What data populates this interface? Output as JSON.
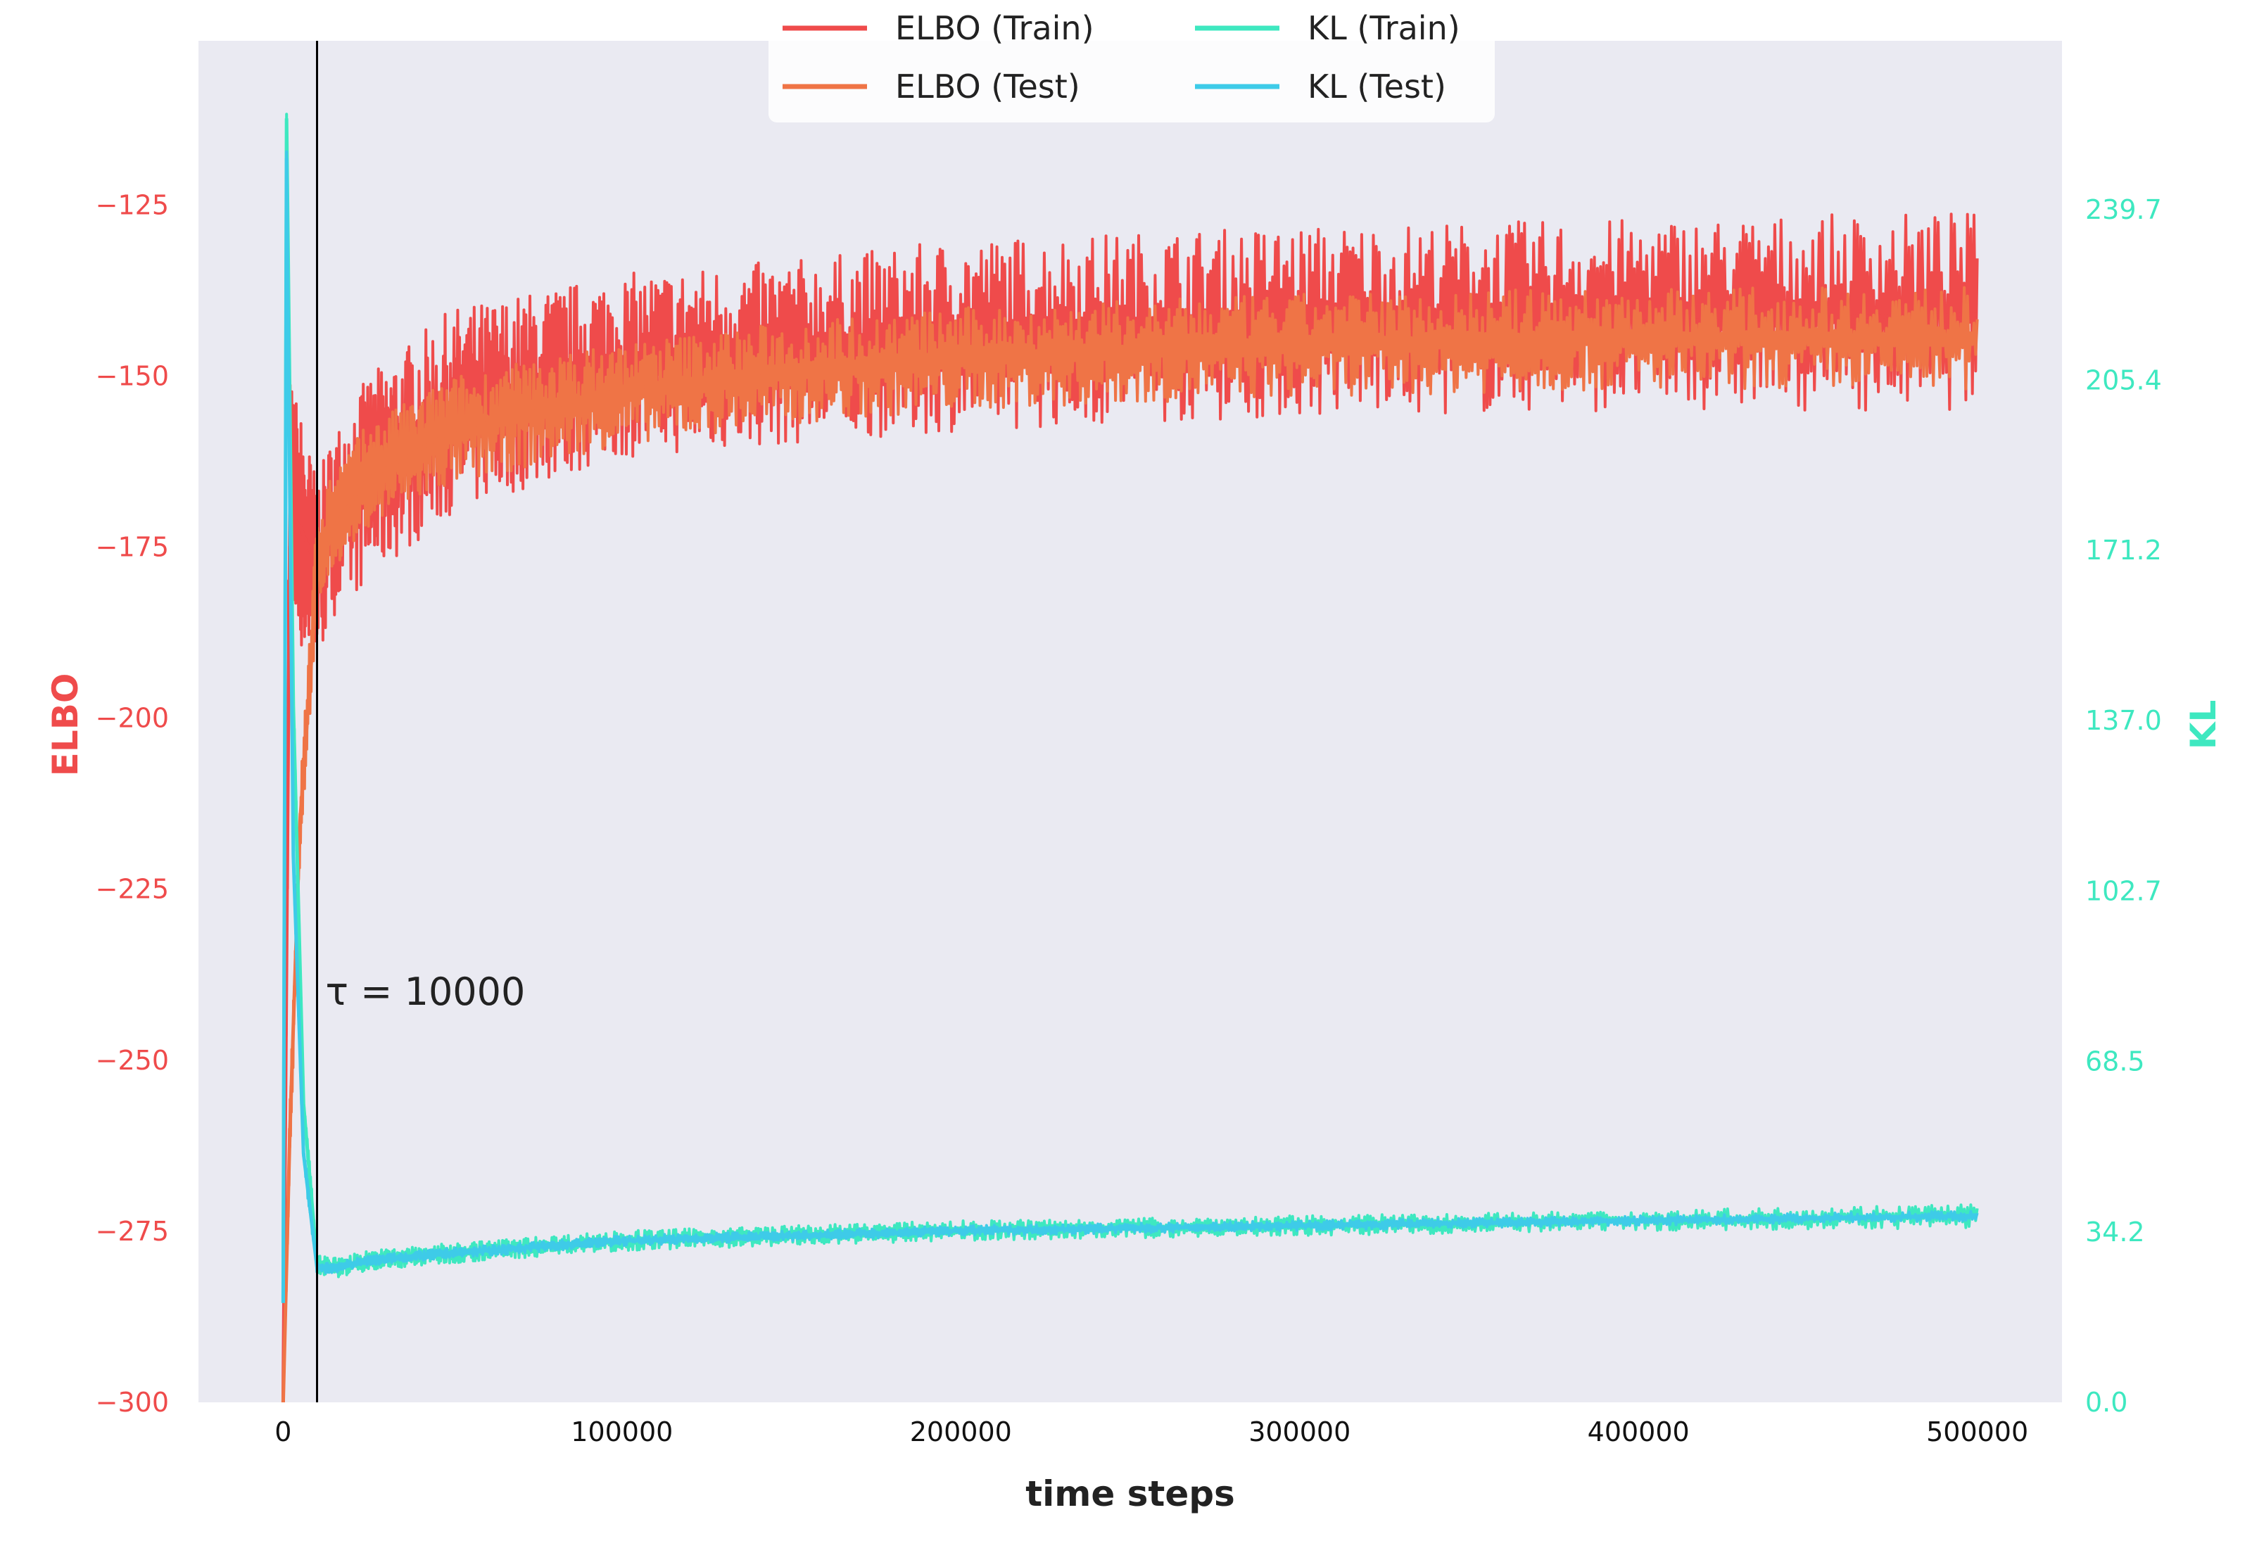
{
  "chart_data": {
    "type": "line",
    "xlabel": "time steps",
    "ylabel_left": "ELBO",
    "ylabel_right": "KL",
    "x_ticks": [
      "0",
      "100000",
      "200000",
      "300000",
      "400000",
      "500000"
    ],
    "y_left_ticks": [
      "−125",
      "−150",
      "−175",
      "−200",
      "−225",
      "−250",
      "−275",
      "−300"
    ],
    "y_right_ticks": [
      "239.7",
      "205.4",
      "171.2",
      "137.0",
      "102.7",
      "68.5",
      "34.2",
      "0.0"
    ],
    "xlim": [
      -25000,
      525000
    ],
    "ylim_left": [
      -300,
      -101
    ],
    "ylim_right": [
      0,
      273.6
    ],
    "grid": false,
    "legend_position": "top-center",
    "annotation": {
      "text": "τ = 10000",
      "x": 10000
    },
    "colors": {
      "elbo_train": "#ef4b4b",
      "elbo_test": "#ef7446",
      "kl_train": "#3ee8c0",
      "kl_test": "#3ecbe8",
      "left_axis": "#ef4b4b",
      "right_axis": "#3ee8c0",
      "plot_bg": "#eaeaf2"
    },
    "series": [
      {
        "name": "ELBO (Train)",
        "axis": "left",
        "x": [
          0,
          2000,
          5000,
          10000,
          15000,
          25000,
          50000,
          100000,
          150000,
          200000,
          300000,
          400000,
          500000
        ],
        "y_mid": [
          -300,
          -170,
          -172,
          -178,
          -173,
          -168,
          -160,
          -152,
          -148,
          -146,
          -144,
          -142,
          -141
        ],
        "y_low": [
          -300,
          -185,
          -190,
          -192,
          -185,
          -180,
          -170,
          -162,
          -160,
          -158,
          -156,
          -155,
          -155
        ],
        "y_high": [
          -300,
          -150,
          -155,
          -165,
          -158,
          -150,
          -140,
          -135,
          -133,
          -130,
          -128,
          -127,
          -126
        ]
      },
      {
        "name": "ELBO (Test)",
        "axis": "left",
        "x": [
          0,
          2000,
          5000,
          10000,
          15000,
          25000,
          50000,
          100000,
          150000,
          200000,
          300000,
          400000,
          500000
        ],
        "y_mid": [
          -300,
          -260,
          -215,
          -180,
          -172,
          -165,
          -158,
          -152,
          -149,
          -147,
          -145,
          -144,
          -144
        ],
        "y_low": [
          -300,
          -265,
          -220,
          -185,
          -178,
          -172,
          -166,
          -160,
          -157,
          -155,
          -153,
          -152,
          -152
        ],
        "y_high": [
          -300,
          -255,
          -210,
          -170,
          -163,
          -157,
          -150,
          -145,
          -142,
          -140,
          -138,
          -137,
          -137
        ]
      },
      {
        "name": "KL (Train)",
        "axis": "right",
        "x": [
          0,
          1000,
          3000,
          6000,
          10000,
          15000,
          25000,
          50000,
          100000,
          200000,
          300000,
          400000,
          500000
        ],
        "y_mid": [
          20,
          258,
          140,
          60,
          28,
          27,
          28.5,
          30,
          32.5,
          34.5,
          35.5,
          36.5,
          37.5
        ],
        "y_low": [
          20,
          255,
          135,
          57,
          26,
          25,
          26.5,
          28,
          30.5,
          32.5,
          33.5,
          34.5,
          35
        ],
        "y_high": [
          20,
          261,
          145,
          63,
          30,
          29,
          30.5,
          32,
          34.5,
          36.5,
          37.5,
          38.5,
          40
        ]
      },
      {
        "name": "KL (Test)",
        "axis": "right",
        "x": [
          0,
          1000,
          3000,
          6000,
          10000,
          15000,
          25000,
          50000,
          100000,
          200000,
          300000,
          400000,
          500000
        ],
        "y_mid": [
          20,
          250,
          110,
          50,
          27,
          27,
          28.5,
          30,
          32.5,
          34.5,
          35.5,
          36.5,
          37.5
        ],
        "y_low": [
          20,
          248,
          108,
          48,
          26,
          26,
          27.5,
          29,
          31.5,
          33.5,
          34.5,
          35.5,
          36.5
        ],
        "y_high": [
          20,
          252,
          112,
          52,
          28,
          28,
          29.5,
          31,
          33.5,
          35.5,
          36.5,
          37.5,
          38.5
        ]
      }
    ]
  }
}
